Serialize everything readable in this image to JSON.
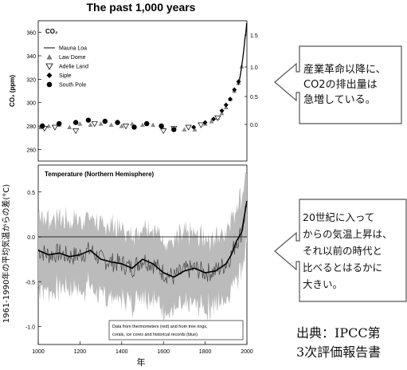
{
  "chart_data": [
    {
      "type": "scatter",
      "title": "The past 1,000 years",
      "panel_label": "CO₂",
      "ylabel": "CO₂ (ppm)",
      "ylim": [
        250,
        370
      ],
      "yticks": [
        260,
        280,
        300,
        320,
        340,
        360
      ],
      "right_ticks": [
        "1.5",
        "1.0",
        "0.5",
        "0.0"
      ],
      "xlim": [
        1000,
        2000
      ],
      "legend": [
        "Mauna Loa",
        "Law Dome",
        "Adelie Land",
        "Siple",
        "South Pole"
      ],
      "legend_placement": "top-left",
      "series": [
        {
          "name": "Law Dome",
          "points": [
            [
              1010,
              279
            ],
            [
              1050,
              280
            ],
            [
              1100,
              281
            ],
            [
              1150,
              279
            ],
            [
              1200,
              282
            ],
            [
              1250,
              281
            ],
            [
              1300,
              282
            ],
            [
              1350,
              281
            ],
            [
              1400,
              280
            ],
            [
              1450,
              282
            ],
            [
              1500,
              281
            ],
            [
              1550,
              281
            ],
            [
              1600,
              278
            ],
            [
              1650,
              277
            ],
            [
              1700,
              277
            ],
            [
              1750,
              277
            ],
            [
              1800,
              282
            ],
            [
              1830,
              284
            ],
            [
              1860,
              287
            ],
            [
              1880,
              291
            ],
            [
              1900,
              296
            ],
            [
              1920,
              303
            ],
            [
              1940,
              310
            ],
            [
              1960,
              317
            ],
            [
              1975,
              331
            ]
          ]
        },
        {
          "name": "Adelie Land",
          "points": [
            [
              1030,
              278
            ],
            [
              1080,
              279
            ],
            [
              1180,
              276
            ],
            [
              1270,
              282
            ],
            [
              1420,
              280
            ],
            [
              1600,
              276
            ],
            [
              1650,
              278
            ],
            [
              1720,
              279
            ],
            [
              1780,
              281
            ],
            [
              1860,
              287
            ]
          ]
        },
        {
          "name": "Siple",
          "points": [
            [
              1745,
              279
            ],
            [
              1800,
              283
            ],
            [
              1840,
              286
            ],
            [
              1880,
              293
            ],
            [
              1900,
              298
            ],
            [
              1920,
              303
            ],
            [
              1940,
              311
            ],
            [
              1960,
              318
            ]
          ]
        },
        {
          "name": "South Pole",
          "points": [
            [
              1020,
              280
            ],
            [
              1100,
              282
            ],
            [
              1180,
              283
            ],
            [
              1240,
              285
            ],
            [
              1320,
              284
            ],
            [
              1380,
              283
            ],
            [
              1460,
              279
            ],
            [
              1520,
              282
            ],
            [
              1590,
              280
            ],
            [
              1650,
              277
            ]
          ]
        },
        {
          "name": "Mauna Loa",
          "points": [
            [
              1958,
              315
            ],
            [
              1965,
              320
            ],
            [
              1970,
              325
            ],
            [
              1975,
              331
            ],
            [
              1980,
              338
            ],
            [
              1985,
              345
            ],
            [
              1990,
              354
            ],
            [
              1995,
              360
            ],
            [
              1999,
              368
            ]
          ]
        }
      ]
    },
    {
      "type": "line",
      "panel_label": "Temperature (Northern Hemisphere)",
      "ylabel": "1961-1990年の平均気温からの差(°C)",
      "xlabel": "年",
      "xlim": [
        1000,
        2000
      ],
      "xticks": [
        1000,
        1200,
        1400,
        1600,
        1800,
        2000
      ],
      "ylim": [
        -1.2,
        0.8
      ],
      "yticks": [
        -1.0,
        -0.5,
        0.0,
        0.5
      ],
      "note": "Data from thermometers (red) and from tree rings, corals, ice cores and historical records (blue).",
      "series": [
        {
          "x": [
            1000,
            1050,
            1100,
            1150,
            1200,
            1250,
            1300,
            1350,
            1400,
            1450,
            1500,
            1550,
            1600,
            1650,
            1700,
            1750,
            1800,
            1850,
            1900,
            1925,
            1950,
            1975,
            2000
          ],
          "y": [
            -0.15,
            -0.2,
            -0.18,
            -0.22,
            -0.2,
            -0.15,
            -0.25,
            -0.28,
            -0.3,
            -0.35,
            -0.25,
            -0.3,
            -0.4,
            -0.45,
            -0.38,
            -0.35,
            -0.4,
            -0.38,
            -0.3,
            -0.2,
            -0.05,
            0.05,
            0.4
          ]
        }
      ]
    }
  ],
  "callouts": [
    {
      "text_lines": [
        "産業革命以降に、",
        "CO2の排出量は",
        "急増している。"
      ]
    },
    {
      "text_lines": [
        "20世紀に入って",
        "からの気温上昇は、",
        "それ以前の時代と",
        "比べるとはるかに",
        "大きい。"
      ]
    }
  ],
  "source": {
    "lines": [
      "出典：IPCC第",
      "3次評価報告書"
    ]
  }
}
